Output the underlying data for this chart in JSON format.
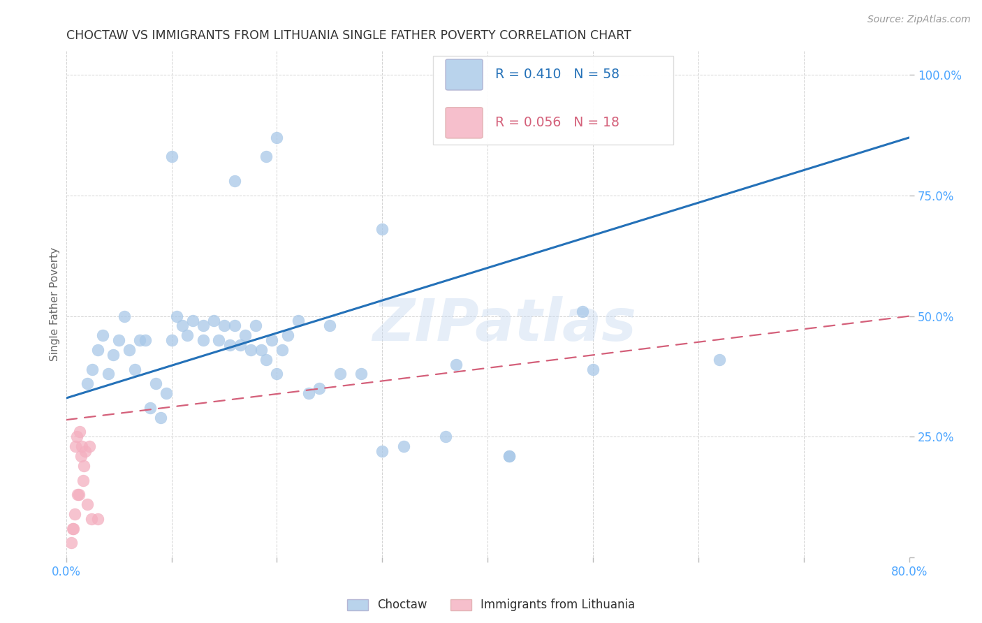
{
  "title": "CHOCTAW VS IMMIGRANTS FROM LITHUANIA SINGLE FATHER POVERTY CORRELATION CHART",
  "source": "Source: ZipAtlas.com",
  "ylabel": "Single Father Poverty",
  "xlim": [
    0.0,
    0.8
  ],
  "ylim": [
    0.0,
    1.05
  ],
  "xticks": [
    0.0,
    0.1,
    0.2,
    0.3,
    0.4,
    0.5,
    0.6,
    0.7,
    0.8
  ],
  "yticks": [
    0.0,
    0.25,
    0.5,
    0.75,
    1.0
  ],
  "legend_blue_r": "R = 0.410",
  "legend_blue_n": "N = 58",
  "legend_pink_r": "R = 0.056",
  "legend_pink_n": "N = 18",
  "blue_color": "#a8c8e8",
  "pink_color": "#f4afc0",
  "blue_line_color": "#2471b8",
  "pink_line_color": "#d4607a",
  "tick_color": "#4da6ff",
  "blue_scatter_x": [
    0.02,
    0.025,
    0.03,
    0.035,
    0.04,
    0.045,
    0.05,
    0.055,
    0.06,
    0.065,
    0.07,
    0.075,
    0.08,
    0.085,
    0.09,
    0.095,
    0.1,
    0.105,
    0.11,
    0.115,
    0.12,
    0.13,
    0.13,
    0.14,
    0.145,
    0.15,
    0.155,
    0.16,
    0.165,
    0.17,
    0.175,
    0.18,
    0.185,
    0.19,
    0.195,
    0.2,
    0.205,
    0.21,
    0.22,
    0.23,
    0.24,
    0.25,
    0.26,
    0.3,
    0.32,
    0.36,
    0.37,
    0.42,
    0.42,
    0.49,
    0.5,
    0.62,
    0.16,
    0.3,
    0.19,
    0.2,
    0.1,
    0.28
  ],
  "blue_scatter_y": [
    0.36,
    0.39,
    0.43,
    0.46,
    0.38,
    0.42,
    0.45,
    0.5,
    0.43,
    0.39,
    0.45,
    0.45,
    0.31,
    0.36,
    0.29,
    0.34,
    0.45,
    0.5,
    0.48,
    0.46,
    0.49,
    0.48,
    0.45,
    0.49,
    0.45,
    0.48,
    0.44,
    0.48,
    0.44,
    0.46,
    0.43,
    0.48,
    0.43,
    0.41,
    0.45,
    0.38,
    0.43,
    0.46,
    0.49,
    0.34,
    0.35,
    0.48,
    0.38,
    0.22,
    0.23,
    0.25,
    0.4,
    0.21,
    0.21,
    0.51,
    0.39,
    0.41,
    0.78,
    0.68,
    0.83,
    0.87,
    0.83,
    0.38
  ],
  "pink_scatter_x": [
    0.005,
    0.006,
    0.007,
    0.008,
    0.009,
    0.01,
    0.011,
    0.012,
    0.013,
    0.014,
    0.015,
    0.016,
    0.017,
    0.018,
    0.02,
    0.022,
    0.024,
    0.03
  ],
  "pink_scatter_y": [
    0.03,
    0.06,
    0.06,
    0.09,
    0.23,
    0.25,
    0.13,
    0.13,
    0.26,
    0.21,
    0.23,
    0.16,
    0.19,
    0.22,
    0.11,
    0.23,
    0.08,
    0.08
  ],
  "blue_line_x": [
    0.0,
    0.8
  ],
  "blue_line_y": [
    0.33,
    0.87
  ],
  "pink_line_x": [
    0.0,
    0.8
  ],
  "pink_line_y": [
    0.285,
    0.5
  ],
  "background_color": "#ffffff",
  "grid_color": "#cccccc",
  "title_color": "#333333",
  "ylabel_color": "#666666"
}
